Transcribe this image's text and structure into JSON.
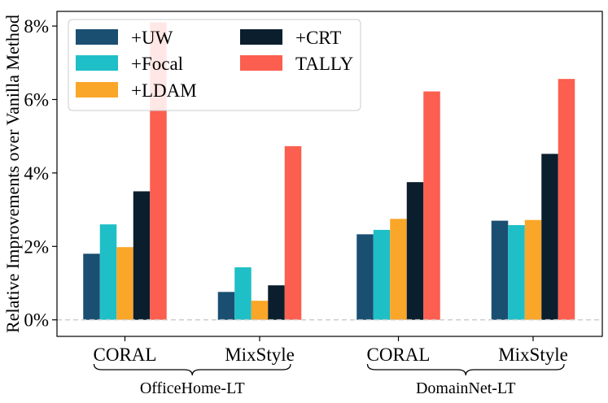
{
  "chart_data": {
    "type": "bar",
    "ylabel": "Relative Improvements over Vanilla Method",
    "ylim": [
      -0.45,
      8.4
    ],
    "yticks": [
      0,
      2,
      4,
      6,
      8
    ],
    "ytick_labels": [
      "0%",
      "2%",
      "4%",
      "6%",
      "8%"
    ],
    "zero_line": "dashed",
    "legend": {
      "position": "top-left",
      "columns": 2
    },
    "categories": [
      "CORAL",
      "MixStyle",
      "CORAL",
      "MixStyle"
    ],
    "groups": [
      {
        "label": "OfficeHome-LT",
        "categories": [
          0,
          1
        ]
      },
      {
        "label": "DomainNet-LT",
        "categories": [
          2,
          3
        ]
      }
    ],
    "series": [
      {
        "name": "+UW",
        "color": "#1a4f72",
        "values": [
          1.8,
          0.76,
          2.33,
          2.7
        ]
      },
      {
        "name": "+Focal",
        "color": "#1fbfc7",
        "values": [
          2.6,
          1.43,
          2.45,
          2.58
        ]
      },
      {
        "name": "+LDAM",
        "color": "#faa628",
        "values": [
          1.98,
          0.52,
          2.75,
          2.72
        ]
      },
      {
        "name": "+CRT",
        "color": "#0b1e2d",
        "values": [
          3.5,
          0.94,
          3.75,
          4.52
        ]
      },
      {
        "name": "TALLY",
        "color": "#fc5e4f",
        "values": [
          8.1,
          4.73,
          6.22,
          6.56
        ]
      }
    ]
  }
}
